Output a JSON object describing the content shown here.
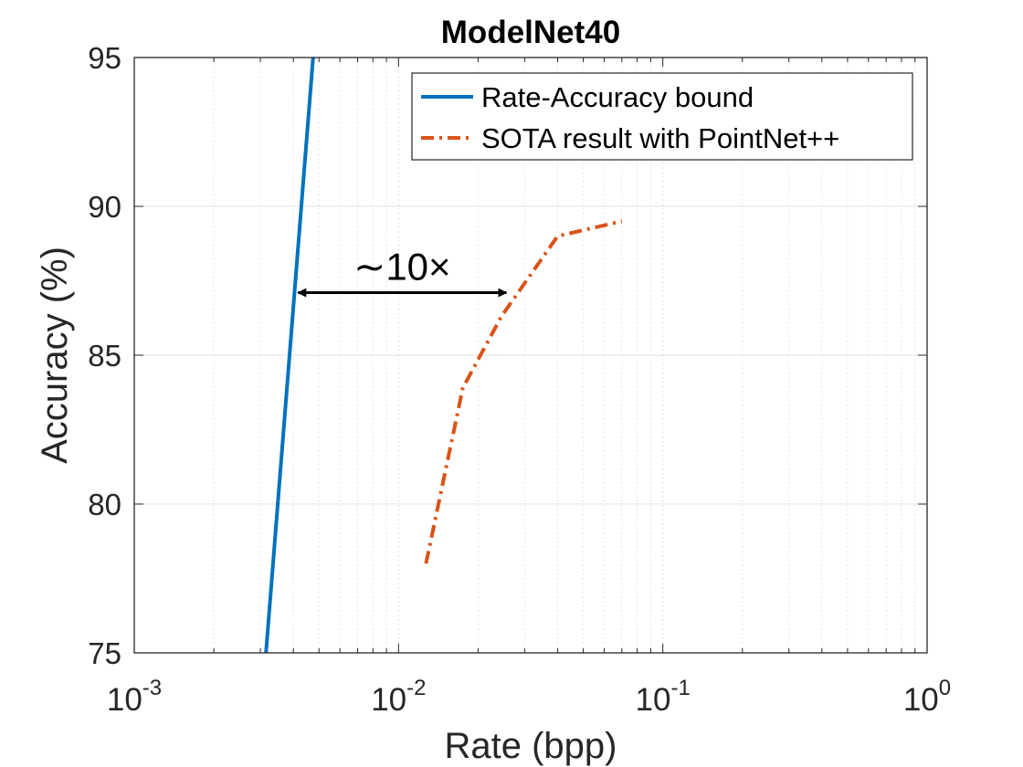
{
  "chart_data": {
    "type": "line",
    "title": "ModelNet40",
    "xlabel": "Rate (bpp)",
    "ylabel": "Accuracy (%)",
    "xscale": "log",
    "xlim": [
      0.001,
      1
    ],
    "ylim": [
      75,
      95
    ],
    "grid": {
      "x_minor": true,
      "y_major": true
    },
    "x_tick_labels": [
      {
        "base": "10",
        "exp": "-3",
        "value": 0.001
      },
      {
        "base": "10",
        "exp": "-2",
        "value": 0.01
      },
      {
        "base": "10",
        "exp": "-1",
        "value": 0.1
      },
      {
        "base": "10",
        "exp": "0",
        "value": 1
      }
    ],
    "y_ticks": [
      75,
      80,
      85,
      90,
      95
    ],
    "y_tick_labels": [
      "75",
      "80",
      "85",
      "90",
      "95"
    ],
    "legend_position": "top-right",
    "series": [
      {
        "name": "Rate-Accuracy bound",
        "style": "solid",
        "color": "#0072BD",
        "x": [
          0.00315,
          0.00475
        ],
        "y": [
          75,
          95
        ]
      },
      {
        "name": "SOTA result with PointNet++",
        "style": "dashdot",
        "color": "#D95319",
        "x": [
          0.0127,
          0.0175,
          0.0245,
          0.04,
          0.07
        ],
        "y": [
          78.0,
          83.9,
          86.3,
          89.0,
          89.5
        ]
      }
    ],
    "annotation": {
      "text": "∼10×",
      "x_from": 0.0041,
      "x_to": 0.026,
      "y": 87.1
    }
  }
}
